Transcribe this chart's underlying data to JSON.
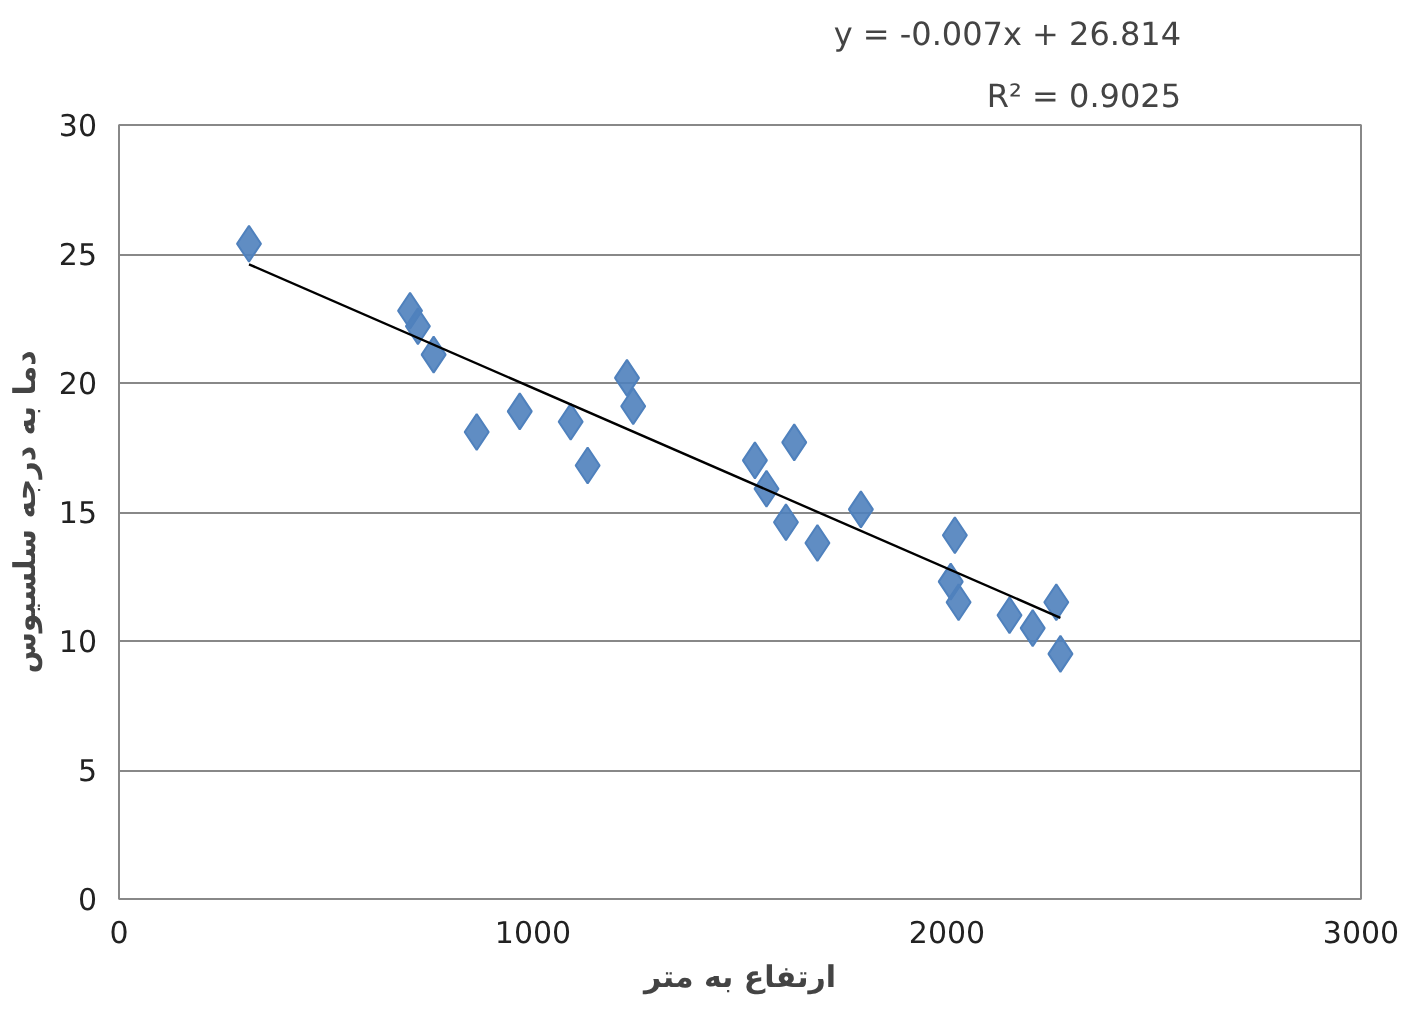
{
  "chart_data": {
    "type": "scatter",
    "xlabel": "ارتفاع به متر",
    "ylabel": "دما به درجه سلسیوس",
    "annotations": [
      "y = -0.007x + 26.814",
      "R² = 0.9025"
    ],
    "xlim": [
      0,
      3000
    ],
    "xticks": [
      0,
      1000,
      2000,
      3000
    ],
    "ylim": [
      0,
      30
    ],
    "yticks": [
      0,
      5,
      10,
      15,
      20,
      25,
      30
    ],
    "grid": "y",
    "marker": "diamond",
    "series": [
      {
        "color": "#4f81bd",
        "x": [
          314,
          703,
          722,
          760,
          864,
          968,
          1091,
          1132,
          1227,
          1242,
          1536,
          1631,
          1564,
          1611,
          1687,
          1792,
          2019,
          2009,
          2028,
          2151,
          2264,
          2274,
          2207
        ],
        "values": [
          25.4,
          22.8,
          22.2,
          21.1,
          18.1,
          18.9,
          18.5,
          16.8,
          20.2,
          19.1,
          17.0,
          17.7,
          15.9,
          14.6,
          13.8,
          15.1,
          14.1,
          12.3,
          11.5,
          11.0,
          11.5,
          9.5,
          10.5
        ]
      },
      {
        "type": "line",
        "color": "#000000",
        "line_style": "solid",
        "marker": "none",
        "x": [
          314,
          2274
        ],
        "values": [
          24.6,
          10.9
        ]
      }
    ]
  }
}
